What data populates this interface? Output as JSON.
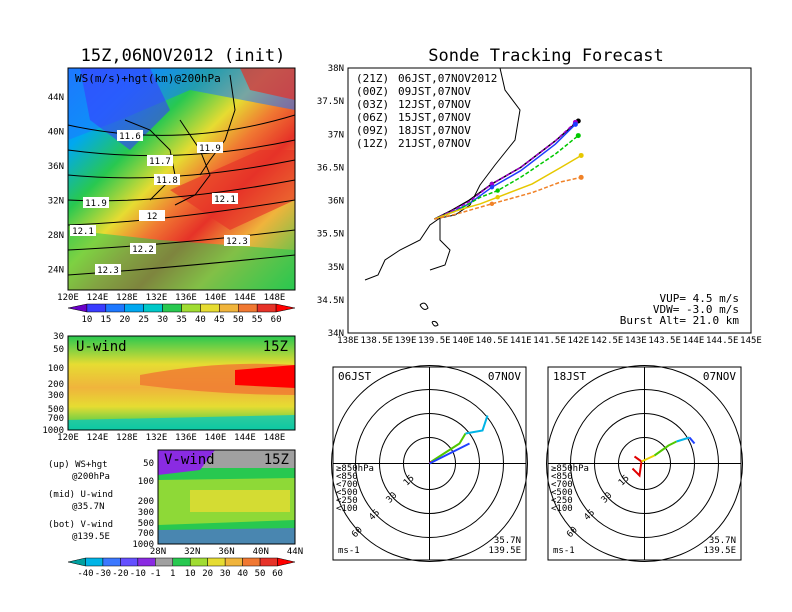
{
  "main_title": "Sonde Tracking Forecast",
  "left_title": "15Z,06NOV2012 (init)",
  "map": {
    "panel_label": "WS(m/s)+hgt(km)@200hPa",
    "lon_ticks": [
      "120E",
      "124E",
      "128E",
      "132E",
      "136E",
      "140E",
      "144E",
      "148E"
    ],
    "lat_ticks": [
      "44N",
      "40N",
      "36N",
      "32N",
      "28N",
      "24N"
    ],
    "contour_labels": [
      "11.6",
      "11.7",
      "11.8",
      "11.9",
      "11.9",
      "12",
      "12.1",
      "12.1",
      "12.2",
      "12.3",
      "12.3"
    ]
  },
  "ws_colorbar": [
    "10",
    "15",
    "20",
    "25",
    "30",
    "35",
    "40",
    "45",
    "50",
    "55",
    "60"
  ],
  "uwind": {
    "label": "U-wind",
    "time": "15Z",
    "p_ticks": [
      "30",
      "50",
      "100",
      "200",
      "300",
      "500",
      "700",
      "1000"
    ],
    "lon_ticks": [
      "120E",
      "124E",
      "128E",
      "132E",
      "136E",
      "140E",
      "144E",
      "148E"
    ]
  },
  "vwind": {
    "label": "V-wind",
    "time": "15Z",
    "p_ticks": [
      "50",
      "100",
      "200",
      "300",
      "500",
      "700",
      "1000"
    ],
    "lat_ticks": [
      "28N",
      "32N",
      "36N",
      "40N",
      "44N"
    ]
  },
  "legend_notes": [
    {
      "a": "(up) WS+hgt",
      "b": "@200hPa"
    },
    {
      "a": "(mid) U-wind",
      "b": "@35.7N"
    },
    {
      "a": "(bot) V-wind",
      "b": "@139.5E"
    }
  ],
  "wind_colorbar": [
    "-40",
    "-30",
    "-20",
    "-10",
    "-1",
    "1",
    "10",
    "20",
    "30",
    "40",
    "50",
    "60"
  ],
  "tracking": {
    "lat_ticks": [
      "38N",
      "37.5N",
      "37N",
      "36.5N",
      "36N",
      "35.5N",
      "35N",
      "34.5N",
      "34N"
    ],
    "lon_ticks": [
      "138E",
      "138.5E",
      "139E",
      "139.5E",
      "140E",
      "140.5E",
      "141E",
      "141.5E",
      "142E",
      "142.5E",
      "143E",
      "143.5E",
      "144E",
      "144.5E",
      "145E"
    ],
    "launches": [
      {
        "z": "(21Z)",
        "t": "06JST,07NOV2012",
        "color": "#000000"
      },
      {
        "z": "(00Z)",
        "t": "09JST,07NOV",
        "color": "#a000c8"
      },
      {
        "z": "(03Z)",
        "t": "12JST,07NOV",
        "color": "#1e3cff"
      },
      {
        "z": "(06Z)",
        "t": "15JST,07NOV",
        "color": "#00c800"
      },
      {
        "z": "(09Z)",
        "t": "18JST,07NOV",
        "color": "#e6c800"
      },
      {
        "z": "(12Z)",
        "t": "21JST,07NOV",
        "color": "#f08228"
      }
    ],
    "params": [
      "VUP=  4.5 m/s",
      "VDW= -3.0 m/s",
      "Burst Alt= 21.0 km"
    ]
  },
  "chart_data": {
    "type": "line",
    "title": "Sonde Tracking Forecast",
    "xlim": [
      138,
      145
    ],
    "ylim": [
      34,
      38
    ],
    "series": [
      {
        "name": "06JST,07NOV2012",
        "x": [
          139.5,
          139.8,
          140.1,
          140.5,
          141.0,
          141.6,
          142.0
        ],
        "y": [
          35.72,
          35.85,
          36.0,
          36.25,
          36.5,
          36.9,
          37.2
        ]
      },
      {
        "name": "09JST,07NOV",
        "x": [
          139.5,
          139.8,
          140.1,
          140.5,
          141.0,
          141.6,
          141.95
        ],
        "y": [
          35.72,
          35.84,
          35.98,
          36.25,
          36.5,
          36.9,
          37.18
        ]
      },
      {
        "name": "12JST,07NOV",
        "x": [
          139.5,
          139.8,
          140.1,
          140.5,
          141.0,
          141.6,
          141.95
        ],
        "y": [
          35.72,
          35.82,
          35.95,
          36.2,
          36.45,
          36.85,
          37.15
        ]
      },
      {
        "name": "15JST,07NOV",
        "x": [
          139.5,
          139.9,
          140.3,
          140.6,
          141.0,
          141.6,
          142.0
        ],
        "y": [
          35.72,
          35.85,
          36.05,
          36.15,
          36.35,
          36.7,
          36.98
        ]
      },
      {
        "name": "18JST,07NOV",
        "x": [
          139.5,
          139.9,
          140.3,
          140.6,
          141.2,
          141.7,
          142.05
        ],
        "y": [
          35.72,
          35.85,
          35.95,
          36.05,
          36.25,
          36.5,
          36.68
        ]
      },
      {
        "name": "21JST,07NOV",
        "x": [
          139.5,
          139.9,
          140.3,
          140.5,
          141.2,
          141.7,
          142.05
        ],
        "y": [
          35.72,
          35.8,
          35.9,
          35.95,
          36.12,
          36.28,
          36.35
        ]
      }
    ]
  },
  "hodo_left": {
    "time": "06JST",
    "date": "07NOV",
    "loc1": "35.7N",
    "loc2": "139.5E",
    "units": "ms-1",
    "ring_labels": [
      "15",
      "30",
      "45",
      "60"
    ],
    "levels": [
      "≥850hPa",
      "<850",
      "<700",
      "<500",
      "<250",
      "<100"
    ]
  },
  "hodo_right": {
    "time": "18JST",
    "date": "07NOV",
    "loc1": "35.7N",
    "loc2": "139.5E",
    "units": "ms-1",
    "ring_labels": [
      "15",
      "30",
      "45",
      "60"
    ],
    "levels": [
      "≥850hPa",
      "<850",
      "<700",
      "<500",
      "<250",
      "<100"
    ]
  },
  "colors": {
    "ws_scale": [
      "#6a00c8",
      "#3a3cff",
      "#1e78ff",
      "#00a8f0",
      "#00c8c8",
      "#28c850",
      "#a0dc32",
      "#e6dc32",
      "#f0b43c",
      "#f07832",
      "#e63228",
      "#ff0000"
    ],
    "wind_scale": [
      "#00a0a0",
      "#00b4e6",
      "#3c78ff",
      "#6450ff",
      "#8a2be2",
      "#a0a0a0",
      "#28c850",
      "#a0dc32",
      "#e6dc32",
      "#f0b43c",
      "#f07832",
      "#e63228",
      "#ff0000"
    ],
    "level_colors": [
      "#e00000",
      "#f0b400",
      "#e6d200",
      "#50c800",
      "#00b4e6",
      "#2040ff"
    ]
  }
}
